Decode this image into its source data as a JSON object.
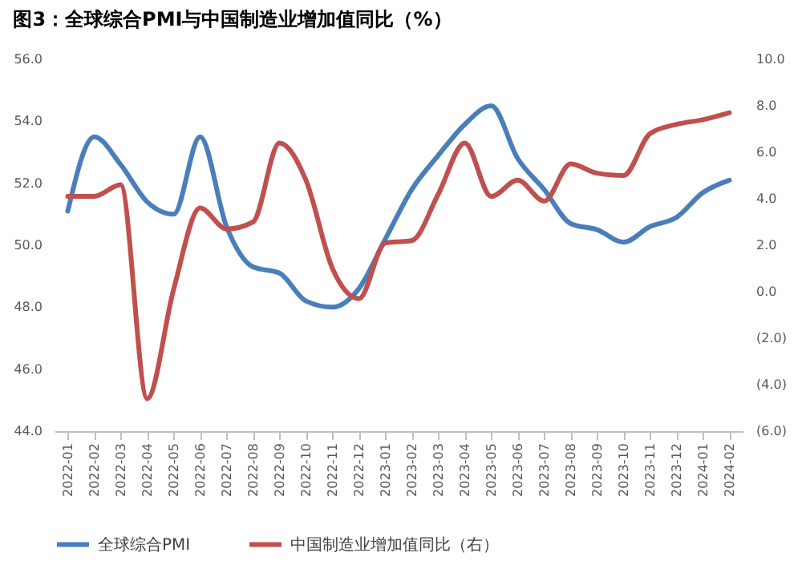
{
  "chart_data": {
    "type": "line",
    "title": "图3：全球综合PMI与中国制造业增加值同比（%）",
    "categories": [
      "2022-01",
      "2022-02",
      "2022-03",
      "2022-04",
      "2022-05",
      "2022-06",
      "2022-07",
      "2022-08",
      "2022-09",
      "2022-10",
      "2022-11",
      "2022-12",
      "2023-01",
      "2023-02",
      "2023-03",
      "2023-04",
      "2023-05",
      "2023-06",
      "2023-07",
      "2023-08",
      "2023-09",
      "2023-10",
      "2023-11",
      "2023-12",
      "2024-01",
      "2024-02"
    ],
    "series": [
      {
        "name": "全球综合PMI",
        "color": "#4a7ebb",
        "values": [
          51.1,
          53.5,
          52.6,
          51.4,
          51.0,
          53.5,
          50.6,
          49.3,
          49.1,
          48.2,
          48.0,
          48.6,
          50.2,
          51.8,
          52.9,
          53.9,
          54.5,
          52.8,
          51.8,
          50.7,
          50.5,
          50.1,
          50.6,
          50.9,
          51.7,
          52.1
        ]
      },
      {
        "name": "中国制造业增加值同比（右）",
        "color": "#c0504d",
        "axis": "y2",
        "values": [
          4.1,
          4.1,
          4.6,
          -4.6,
          0.1,
          3.6,
          2.7,
          3.0,
          6.4,
          4.8,
          1.0,
          -0.3,
          2.1,
          2.2,
          4.2,
          6.4,
          4.1,
          4.8,
          3.9,
          5.5,
          5.1,
          5.0,
          6.8,
          7.2,
          7.4,
          7.7
        ]
      }
    ],
    "ylim": [
      44,
      56
    ],
    "yticks": [
      {
        "value": 44,
        "label": "44.0"
      },
      {
        "value": 46,
        "label": "46.0"
      },
      {
        "value": 48,
        "label": "48.0"
      },
      {
        "value": 50,
        "label": "50.0"
      },
      {
        "value": 52,
        "label": "52.0"
      },
      {
        "value": 54,
        "label": "54.0"
      },
      {
        "value": 56,
        "label": "56.0"
      }
    ],
    "y2lim": [
      -6,
      10
    ],
    "y2ticks": [
      {
        "value": -6,
        "label": "(6.0)"
      },
      {
        "value": -4,
        "label": "(4.0)"
      },
      {
        "value": -2,
        "label": "(2.0)"
      },
      {
        "value": 0,
        "label": "0.0"
      },
      {
        "value": 2,
        "label": "2.0"
      },
      {
        "value": 4,
        "label": "4.0"
      },
      {
        "value": 6,
        "label": "6.0"
      },
      {
        "value": 8,
        "label": "8.0"
      },
      {
        "value": 10,
        "label": "10.0"
      }
    ],
    "legend": "bottom",
    "grid": false,
    "line_style": "solid"
  }
}
